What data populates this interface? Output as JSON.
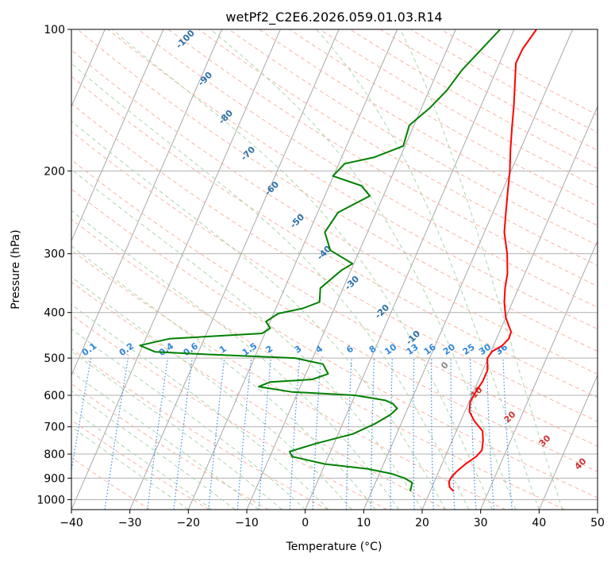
{
  "chart_data": {
    "type": "line",
    "title": "wetPf2_C2E6.2026.059.01.03.R14",
    "xlabel": "Temperature (°C)",
    "ylabel": "Pressure (hPa)",
    "xlim": [
      -40,
      50
    ],
    "ylim": [
      1050,
      100
    ],
    "y_scale": "log",
    "grid": true,
    "x_ticks": [
      "−40",
      "−30",
      "−20",
      "−10",
      "0",
      "10",
      "20",
      "30",
      "40",
      "50"
    ],
    "y_ticks": [
      "100",
      "200",
      "300",
      "400",
      "500",
      "600",
      "700",
      "800",
      "900",
      "1000"
    ],
    "series": [
      {
        "color": "#ff0000",
        "role": "temperature",
        "points": [
          [
            24.0,
            960
          ],
          [
            23.0,
            940
          ],
          [
            22.5,
            915
          ],
          [
            22.6,
            895
          ],
          [
            23.1,
            870
          ],
          [
            24.0,
            840
          ],
          [
            25.3,
            810
          ],
          [
            25.8,
            785
          ],
          [
            25.3,
            750
          ],
          [
            24.5,
            715
          ],
          [
            22.3,
            680
          ],
          [
            20.8,
            650
          ],
          [
            20.2,
            620
          ],
          [
            20.4,
            590
          ],
          [
            20.8,
            560
          ],
          [
            20.8,
            530
          ],
          [
            19.9,
            500
          ],
          [
            20.2,
            484
          ],
          [
            21.5,
            470
          ],
          [
            22.1,
            455
          ],
          [
            22.0,
            440
          ],
          [
            20.0,
            410
          ],
          [
            18.6,
            380
          ],
          [
            17.7,
            355
          ],
          [
            17.0,
            330
          ],
          [
            15.5,
            300
          ],
          [
            13.4,
            270
          ],
          [
            12.2,
            245
          ],
          [
            10.9,
            220
          ],
          [
            9.8,
            200
          ],
          [
            8.3,
            180
          ],
          [
            6.8,
            160
          ],
          [
            5.6,
            145
          ],
          [
            3.9,
            128
          ],
          [
            2.8,
            118
          ],
          [
            2.9,
            110
          ],
          [
            3.8,
            100
          ]
        ]
      },
      {
        "color": "#008000",
        "role": "dewpoint",
        "points": [
          [
            16.6,
            960
          ],
          [
            16.3,
            920
          ],
          [
            14.6,
            900
          ],
          [
            12.0,
            880
          ],
          [
            7.6,
            860
          ],
          [
            0.0,
            840
          ],
          [
            -6.2,
            810
          ],
          [
            -7.0,
            790
          ],
          [
            -3.1,
            760
          ],
          [
            2.5,
            725
          ],
          [
            5.5,
            690
          ],
          [
            7.5,
            660
          ],
          [
            8.2,
            640
          ],
          [
            7.1,
            625
          ],
          [
            5.6,
            615
          ],
          [
            0.0,
            600
          ],
          [
            -11.1,
            590
          ],
          [
            -17.1,
            575
          ],
          [
            -15.5,
            562
          ],
          [
            -8.5,
            555
          ],
          [
            -6.2,
            540
          ],
          [
            -7.8,
            515
          ],
          [
            -13.0,
            500
          ],
          [
            -30.0,
            490
          ],
          [
            -37.4,
            485
          ],
          [
            -40.5,
            470
          ],
          [
            -36.0,
            455
          ],
          [
            -20.5,
            443
          ],
          [
            -19.5,
            432
          ],
          [
            -20.7,
            418
          ],
          [
            -19.2,
            402
          ],
          [
            -15.4,
            392
          ],
          [
            -13.0,
            380
          ],
          [
            -13.9,
            355
          ],
          [
            -11.6,
            325
          ],
          [
            -10.2,
            315
          ],
          [
            -15.0,
            295
          ],
          [
            -17.3,
            270
          ],
          [
            -16.5,
            245
          ],
          [
            -12.3,
            226
          ],
          [
            -14.5,
            215
          ],
          [
            -20.1,
            205
          ],
          [
            -19.0,
            193
          ],
          [
            -14.4,
            187
          ],
          [
            -10.3,
            177
          ],
          [
            -10.8,
            160
          ],
          [
            -8.6,
            147
          ],
          [
            -7.0,
            135
          ],
          [
            -5.9,
            122
          ],
          [
            -2.4,
            100
          ]
        ]
      }
    ],
    "mixing_ratio_labels": [
      "0.1",
      "0.2",
      "0.4",
      "0.6",
      "1",
      "1.5",
      "2",
      "3",
      "4",
      "6",
      "8",
      "10",
      "13",
      "16",
      "20",
      "25",
      "30",
      "36"
    ],
    "dry_adiabat_labels": [
      "-100",
      "-90",
      "-80",
      "-70",
      "-60",
      "-50",
      "-40",
      "-30",
      "-20",
      "-10",
      "0",
      "10",
      "20",
      "30",
      "40"
    ]
  }
}
